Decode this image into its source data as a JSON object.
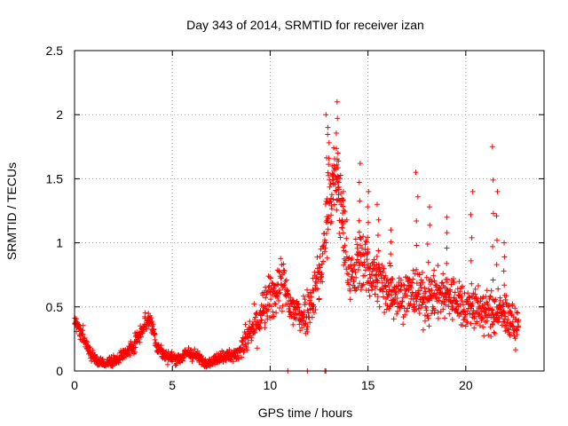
{
  "chart_data": {
    "type": "scatter",
    "title": "Day 343 of 2014, SRMTID for receiver izan",
    "xlabel": "GPS time / hours",
    "ylabel": "SRMTID / TECUs",
    "xlim": [
      0,
      24
    ],
    "ylim": [
      0,
      2.5
    ],
    "x_ticks": [
      0,
      5,
      10,
      15,
      20
    ],
    "x_tick_labels": [
      "0",
      "5",
      "10",
      "15",
      "20"
    ],
    "y_ticks": [
      0,
      0.5,
      1,
      1.5,
      2,
      2.5
    ],
    "y_tick_labels": [
      "0",
      "0.5",
      "1",
      "1.5",
      "2",
      "2.5"
    ],
    "grid": true,
    "marker": "+",
    "series": [
      {
        "name": "SRMTID",
        "color": "#ff0000",
        "trend": [
          [
            0,
            0.4
          ],
          [
            0.3,
            0.32
          ],
          [
            0.6,
            0.2
          ],
          [
            0.9,
            0.12
          ],
          [
            1.2,
            0.07
          ],
          [
            1.6,
            0.06
          ],
          [
            2.0,
            0.08
          ],
          [
            2.4,
            0.12
          ],
          [
            2.8,
            0.16
          ],
          [
            3.2,
            0.25
          ],
          [
            3.6,
            0.38
          ],
          [
            3.9,
            0.4
          ],
          [
            4.2,
            0.2
          ],
          [
            4.6,
            0.12
          ],
          [
            5.0,
            0.1
          ],
          [
            5.4,
            0.1
          ],
          [
            5.8,
            0.14
          ],
          [
            6.2,
            0.12
          ],
          [
            6.6,
            0.07
          ],
          [
            7.0,
            0.07
          ],
          [
            7.4,
            0.11
          ],
          [
            7.8,
            0.12
          ],
          [
            8.2,
            0.12
          ],
          [
            8.6,
            0.2
          ],
          [
            9.0,
            0.3
          ],
          [
            9.4,
            0.38
          ],
          [
            9.8,
            0.52
          ],
          [
            10.2,
            0.6
          ],
          [
            10.6,
            0.7
          ],
          [
            11.0,
            0.5
          ],
          [
            11.4,
            0.45
          ],
          [
            11.8,
            0.45
          ],
          [
            12.2,
            0.6
          ],
          [
            12.6,
            0.8
          ],
          [
            13.0,
            1.3
          ],
          [
            13.4,
            1.5
          ],
          [
            13.8,
            1.0
          ],
          [
            14.2,
            0.7
          ],
          [
            14.6,
            0.9
          ],
          [
            15.0,
            0.8
          ],
          [
            15.5,
            0.7
          ],
          [
            16.0,
            0.65
          ],
          [
            16.5,
            0.6
          ],
          [
            17.0,
            0.6
          ],
          [
            17.5,
            0.6
          ],
          [
            18.0,
            0.55
          ],
          [
            18.5,
            0.6
          ],
          [
            19.0,
            0.6
          ],
          [
            19.5,
            0.55
          ],
          [
            20.0,
            0.5
          ],
          [
            20.5,
            0.5
          ],
          [
            21.0,
            0.45
          ],
          [
            21.5,
            0.45
          ],
          [
            22.0,
            0.45
          ],
          [
            22.5,
            0.35
          ],
          [
            22.7,
            0.35
          ]
        ],
        "spikes": [
          [
            12.9,
            2.0
          ],
          [
            13.0,
            1.9
          ],
          [
            13.2,
            1.6
          ],
          [
            13.4,
            2.1
          ],
          [
            13.5,
            1.7
          ],
          [
            13.7,
            1.4
          ],
          [
            14.6,
            1.62
          ],
          [
            15.0,
            1.4
          ],
          [
            15.5,
            1.3
          ],
          [
            16.2,
            1.1
          ],
          [
            17.5,
            1.55
          ],
          [
            18.1,
            1.28
          ],
          [
            19.0,
            1.2
          ],
          [
            20.3,
            1.4
          ],
          [
            21.4,
            1.75
          ],
          [
            21.6,
            1.4
          ],
          [
            22.0,
            1.0
          ]
        ],
        "point_count": 1650
      }
    ]
  }
}
